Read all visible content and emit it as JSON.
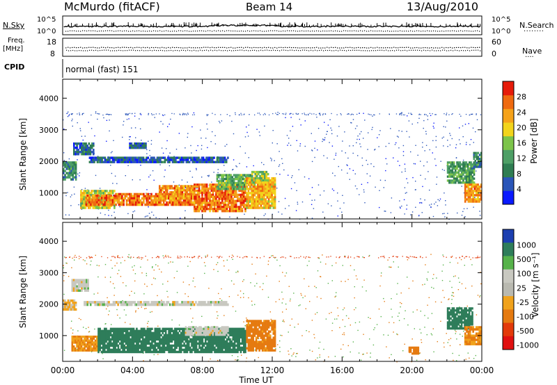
{
  "header": {
    "station": "McMurdo (fitACF)",
    "beam": "Beam 14",
    "date": "13/Aug/2010"
  },
  "info_panels": {
    "nsky_label": "N.Sky",
    "nsearch_label": "N.Search",
    "nsearch_dots": "........",
    "left_tick_top": "10^5",
    "left_tick_bottom": "10^0",
    "right_tick_top": "10^5",
    "right_tick_bottom": "10^0",
    "freq_label_line1": "Freq.",
    "freq_label_line2": "[MHz]",
    "freq_ticks": [
      "18",
      "8"
    ],
    "nave_label": "Nave",
    "nave_dots": "....",
    "nave_ticks": [
      "60",
      "0"
    ],
    "cpid_label": "CPID",
    "cpid_value": "normal (fast) 151"
  },
  "colors": {
    "power_scale": [
      "#0a1aff",
      "#2a55b8",
      "#2f7d52",
      "#4e9f66",
      "#7cc44a",
      "#f2d41c",
      "#f5a21a",
      "#ef6a10",
      "#e61b0a"
    ],
    "velocity_scale": [
      "#1c3fb0",
      "#2e7d5a",
      "#56b24a",
      "#c8c8c0",
      "#b9b9b0",
      "#f0a21c",
      "#e57a10",
      "#e33a0a",
      "#e01010"
    ]
  },
  "chart_data": [
    {
      "type": "heatmap",
      "name": "power",
      "ylabel": "Slant Range [km]",
      "xlabel": "Time UT",
      "x_ticks": [
        "00:00",
        "04:00",
        "08:00",
        "12:00",
        "16:00",
        "20:00",
        "00:00"
      ],
      "x_hours": [
        0,
        4,
        8,
        12,
        16,
        20,
        24
      ],
      "xlim": [
        0,
        24
      ],
      "ylim": [
        180,
        4600
      ],
      "y_ticks": [
        1000,
        2000,
        3000,
        4000
      ],
      "colorbar": {
        "label": "Power [dB]",
        "ticks": [
          4,
          8,
          12,
          16,
          20,
          24,
          28
        ],
        "range": [
          0,
          32
        ]
      },
      "regions": [
        {
          "t0": 1.0,
          "t1": 3.0,
          "r0": 500,
          "r1": 1100,
          "value": 18
        },
        {
          "t0": 1.3,
          "t1": 3.0,
          "r0": 600,
          "r1": 950,
          "value": 26
        },
        {
          "t0": 3.0,
          "t1": 7.5,
          "r0": 600,
          "r1": 1000,
          "value": 26
        },
        {
          "t0": 5.5,
          "t1": 7.5,
          "r0": 800,
          "r1": 1250,
          "value": 24
        },
        {
          "t0": 7.5,
          "t1": 10.5,
          "r0": 400,
          "r1": 1300,
          "value": 26
        },
        {
          "t0": 8.8,
          "t1": 10.8,
          "r0": 1100,
          "r1": 1600,
          "value": 14
        },
        {
          "t0": 10.5,
          "t1": 12.2,
          "r0": 500,
          "r1": 1500,
          "value": 22
        },
        {
          "t0": 10.8,
          "t1": 11.8,
          "r0": 1300,
          "r1": 1700,
          "value": 16
        },
        {
          "t0": 0.0,
          "t1": 0.8,
          "r0": 1400,
          "r1": 2000,
          "value": 10
        },
        {
          "t0": 1.5,
          "t1": 9.5,
          "r0": 1950,
          "r1": 2150,
          "value": 6
        },
        {
          "t0": 0.6,
          "t1": 1.8,
          "r0": 2200,
          "r1": 2600,
          "value": 7
        },
        {
          "t0": 3.8,
          "t1": 4.8,
          "r0": 2400,
          "r1": 2600,
          "value": 6
        },
        {
          "t0": 22.0,
          "t1": 23.6,
          "r0": 1300,
          "r1": 2000,
          "value": 12
        },
        {
          "t0": 23.0,
          "t1": 24.0,
          "r0": 700,
          "r1": 1300,
          "value": 24
        },
        {
          "t0": 23.5,
          "t1": 24.0,
          "r0": 1800,
          "r1": 2300,
          "value": 10
        }
      ]
    },
    {
      "type": "heatmap",
      "name": "velocity",
      "ylabel": "Slant Range [km]",
      "xlabel": "Time UT",
      "x_ticks": [
        "00:00",
        "04:00",
        "08:00",
        "12:00",
        "16:00",
        "20:00",
        "00:00"
      ],
      "x_hours": [
        0,
        4,
        8,
        12,
        16,
        20,
        24
      ],
      "xlim": [
        0,
        24
      ],
      "ylim": [
        180,
        4600
      ],
      "y_ticks": [
        1000,
        2000,
        3000,
        4000
      ],
      "colorbar": {
        "label": "Velocity [m s⁻¹]",
        "ticks": [
          "1000",
          "500",
          "100",
          "25",
          "-25",
          "-100",
          "-500",
          "-1000"
        ]
      },
      "regions": [
        {
          "t0": 0.5,
          "t1": 2.0,
          "r0": 500,
          "r1": 1000,
          "value": -100
        },
        {
          "t0": 2.0,
          "t1": 10.5,
          "r0": 450,
          "r1": 1250,
          "value": 300
        },
        {
          "t0": 7.0,
          "t1": 9.5,
          "r0": 1000,
          "r1": 1300,
          "value": 0
        },
        {
          "t0": 10.5,
          "t1": 12.2,
          "r0": 500,
          "r1": 1500,
          "value": -150
        },
        {
          "t0": 0.0,
          "t1": 0.8,
          "r0": 1800,
          "r1": 2150,
          "value": -30
        },
        {
          "t0": 1.2,
          "t1": 9.5,
          "r0": 1950,
          "r1": 2100,
          "value": 0
        },
        {
          "t0": 0.5,
          "t1": 1.5,
          "r0": 2400,
          "r1": 2800,
          "value": 0
        },
        {
          "t0": 22.0,
          "t1": 23.5,
          "r0": 1200,
          "r1": 1900,
          "value": 300
        },
        {
          "t0": 23.0,
          "t1": 24.0,
          "r0": 700,
          "r1": 1300,
          "value": -100
        },
        {
          "t0": 19.8,
          "t1": 20.4,
          "r0": 400,
          "r1": 650,
          "value": -300
        }
      ]
    }
  ]
}
